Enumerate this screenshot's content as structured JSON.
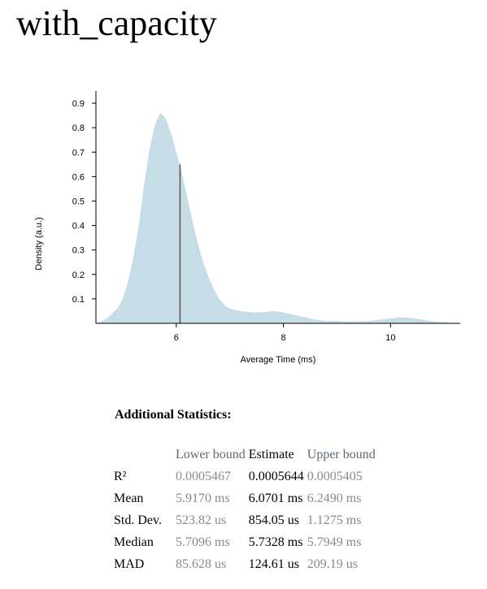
{
  "page": {
    "title": "with_capacity"
  },
  "chart_data": {
    "type": "area",
    "xlabel": "Average Time (ms)",
    "ylabel": "Density (a.u.)",
    "xlim": [
      4.5,
      11.3
    ],
    "ylim": [
      0,
      0.95
    ],
    "xticks": [
      6,
      8,
      10
    ],
    "yticks": [
      0.1,
      0.2,
      0.3,
      0.4,
      0.5,
      0.6,
      0.7,
      0.8,
      0.9
    ],
    "fill_color": "#c6dde8",
    "mean_line_color": "#555555",
    "mean_line": {
      "x": 6.07,
      "y": 0.65
    },
    "x": [
      4.53,
      4.7,
      4.9,
      5.0,
      5.1,
      5.2,
      5.3,
      5.4,
      5.5,
      5.6,
      5.7,
      5.8,
      5.9,
      6.0,
      6.1,
      6.2,
      6.3,
      6.4,
      6.5,
      6.6,
      6.7,
      6.8,
      6.9,
      7.0,
      7.2,
      7.4,
      7.6,
      7.8,
      8.0,
      8.2,
      8.4,
      8.6,
      8.8,
      9.0,
      9.2,
      9.4,
      9.6,
      9.8,
      10.0,
      10.2,
      10.4,
      10.6,
      10.8,
      11.0,
      11.3
    ],
    "y": [
      0.0,
      0.02,
      0.06,
      0.1,
      0.17,
      0.27,
      0.4,
      0.57,
      0.71,
      0.81,
      0.86,
      0.84,
      0.78,
      0.7,
      0.62,
      0.52,
      0.42,
      0.33,
      0.25,
      0.19,
      0.14,
      0.1,
      0.075,
      0.06,
      0.05,
      0.045,
      0.045,
      0.05,
      0.045,
      0.035,
      0.025,
      0.015,
      0.01,
      0.01,
      0.008,
      0.008,
      0.01,
      0.015,
      0.02,
      0.025,
      0.022,
      0.015,
      0.008,
      0.004,
      0.0
    ]
  },
  "stats": {
    "heading": "Additional Statistics:",
    "headers": [
      "",
      "Lower bound",
      "Estimate",
      "Upper bound"
    ],
    "rows": [
      {
        "label": "R²",
        "lower": "0.0005467",
        "estimate": "0.0005644",
        "upper": "0.0005405"
      },
      {
        "label": "Mean",
        "lower": "5.9170 ms",
        "estimate": "6.0701 ms",
        "upper": "6.2490 ms"
      },
      {
        "label": "Std. Dev.",
        "lower": "523.82 us",
        "estimate": "854.05 us",
        "upper": "1.1275 ms"
      },
      {
        "label": "Median",
        "lower": "5.7096 ms",
        "estimate": "5.7328 ms",
        "upper": "5.7949 ms"
      },
      {
        "label": "MAD",
        "lower": "85.628 us",
        "estimate": "124.61 us",
        "upper": "209.19 us"
      }
    ]
  }
}
